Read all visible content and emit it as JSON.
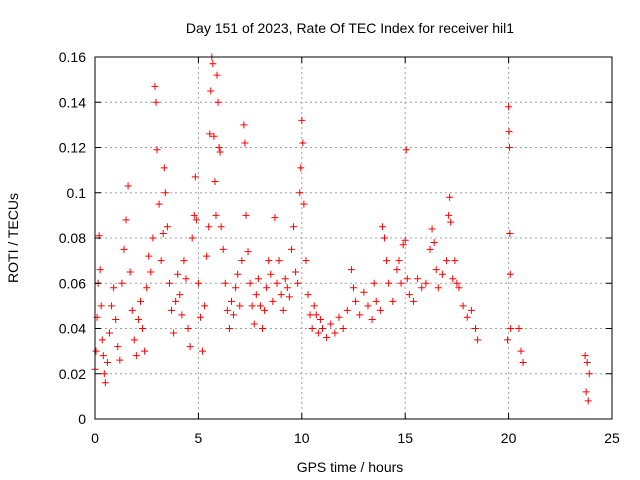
{
  "chart_data": {
    "type": "scatter",
    "title": "Day 151 of 2023, Rate Of TEC Index for receiver hil1",
    "xlabel": "GPS time / hours",
    "ylabel": "ROTI / TECUs",
    "xlim": [
      0,
      25
    ],
    "ylim": [
      0,
      0.16
    ],
    "xticks": [
      0,
      5,
      10,
      15,
      20,
      25
    ],
    "yticks": [
      0,
      0.02,
      0.04,
      0.06,
      0.08,
      0.1,
      0.12,
      0.14,
      0.16
    ],
    "xtick_labels": [
      "0",
      "5",
      "10",
      "15",
      "20",
      "25"
    ],
    "ytick_labels": [
      "0",
      "0.02",
      "0.04",
      "0.06",
      "0.08",
      "0.1",
      "0.12",
      "0.14",
      "0.16"
    ],
    "grid": true,
    "marker": "+",
    "color": "#ff0000",
    "series": [
      {
        "name": "ROTI",
        "points": [
          [
            0.0,
            0.022
          ],
          [
            0.05,
            0.03
          ],
          [
            0.1,
            0.045
          ],
          [
            0.15,
            0.06
          ],
          [
            0.2,
            0.081
          ],
          [
            0.25,
            0.066
          ],
          [
            0.3,
            0.05
          ],
          [
            0.35,
            0.035
          ],
          [
            0.4,
            0.028
          ],
          [
            0.45,
            0.02
          ],
          [
            0.5,
            0.016
          ],
          [
            0.6,
            0.025
          ],
          [
            0.7,
            0.038
          ],
          [
            0.8,
            0.05
          ],
          [
            0.9,
            0.058
          ],
          [
            1.0,
            0.044
          ],
          [
            1.1,
            0.032
          ],
          [
            1.2,
            0.026
          ],
          [
            1.3,
            0.06
          ],
          [
            1.4,
            0.075
          ],
          [
            1.5,
            0.088
          ],
          [
            1.6,
            0.103
          ],
          [
            1.7,
            0.065
          ],
          [
            1.8,
            0.048
          ],
          [
            1.9,
            0.035
          ],
          [
            2.0,
            0.028
          ],
          [
            2.1,
            0.044
          ],
          [
            2.2,
            0.052
          ],
          [
            2.3,
            0.04
          ],
          [
            2.4,
            0.03
          ],
          [
            2.5,
            0.058
          ],
          [
            2.6,
            0.072
          ],
          [
            2.7,
            0.065
          ],
          [
            2.8,
            0.08
          ],
          [
            2.9,
            0.147
          ],
          [
            2.95,
            0.14
          ],
          [
            3.0,
            0.119
          ],
          [
            3.1,
            0.095
          ],
          [
            3.2,
            0.07
          ],
          [
            3.3,
            0.082
          ],
          [
            3.35,
            0.111
          ],
          [
            3.4,
            0.1
          ],
          [
            3.5,
            0.085
          ],
          [
            3.6,
            0.06
          ],
          [
            3.7,
            0.048
          ],
          [
            3.8,
            0.038
          ],
          [
            3.9,
            0.052
          ],
          [
            4.0,
            0.064
          ],
          [
            4.1,
            0.055
          ],
          [
            4.2,
            0.046
          ],
          [
            4.3,
            0.07
          ],
          [
            4.4,
            0.062
          ],
          [
            4.5,
            0.04
          ],
          [
            4.6,
            0.032
          ],
          [
            4.7,
            0.08
          ],
          [
            4.8,
            0.09
          ],
          [
            4.85,
            0.107
          ],
          [
            4.9,
            0.088
          ],
          [
            5.0,
            0.06
          ],
          [
            5.1,
            0.045
          ],
          [
            5.2,
            0.03
          ],
          [
            5.3,
            0.05
          ],
          [
            5.4,
            0.072
          ],
          [
            5.5,
            0.085
          ],
          [
            5.55,
            0.126
          ],
          [
            5.6,
            0.145
          ],
          [
            5.65,
            0.16
          ],
          [
            5.7,
            0.157
          ],
          [
            5.75,
            0.125
          ],
          [
            5.8,
            0.105
          ],
          [
            5.85,
            0.09
          ],
          [
            5.9,
            0.152
          ],
          [
            5.95,
            0.14
          ],
          [
            6.0,
            0.12
          ],
          [
            6.05,
            0.118
          ],
          [
            6.1,
            0.085
          ],
          [
            6.2,
            0.075
          ],
          [
            6.3,
            0.06
          ],
          [
            6.4,
            0.048
          ],
          [
            6.5,
            0.04
          ],
          [
            6.6,
            0.052
          ],
          [
            6.7,
            0.046
          ],
          [
            6.8,
            0.058
          ],
          [
            6.9,
            0.064
          ],
          [
            7.0,
            0.05
          ],
          [
            7.1,
            0.07
          ],
          [
            7.2,
            0.13
          ],
          [
            7.25,
            0.122
          ],
          [
            7.3,
            0.09
          ],
          [
            7.4,
            0.074
          ],
          [
            7.5,
            0.06
          ],
          [
            7.6,
            0.05
          ],
          [
            7.7,
            0.042
          ],
          [
            7.8,
            0.055
          ],
          [
            7.9,
            0.062
          ],
          [
            8.0,
            0.05
          ],
          [
            8.1,
            0.04
          ],
          [
            8.2,
            0.048
          ],
          [
            8.3,
            0.058
          ],
          [
            8.4,
            0.07
          ],
          [
            8.5,
            0.064
          ],
          [
            8.6,
            0.052
          ],
          [
            8.7,
            0.089
          ],
          [
            8.8,
            0.06
          ],
          [
            8.9,
            0.07
          ],
          [
            9.0,
            0.055
          ],
          [
            9.1,
            0.048
          ],
          [
            9.2,
            0.062
          ],
          [
            9.3,
            0.058
          ],
          [
            9.4,
            0.054
          ],
          [
            9.5,
            0.075
          ],
          [
            9.6,
            0.085
          ],
          [
            9.7,
            0.065
          ],
          [
            9.8,
            0.06
          ],
          [
            9.9,
            0.1
          ],
          [
            9.95,
            0.111
          ],
          [
            10.0,
            0.132
          ],
          [
            10.05,
            0.122
          ],
          [
            10.1,
            0.095
          ],
          [
            10.2,
            0.07
          ],
          [
            10.3,
            0.055
          ],
          [
            10.4,
            0.046
          ],
          [
            10.5,
            0.04
          ],
          [
            10.6,
            0.05
          ],
          [
            10.7,
            0.046
          ],
          [
            10.8,
            0.038
          ],
          [
            10.9,
            0.044
          ],
          [
            11.0,
            0.04
          ],
          [
            11.2,
            0.036
          ],
          [
            11.4,
            0.042
          ],
          [
            11.6,
            0.038
          ],
          [
            11.8,
            0.045
          ],
          [
            12.0,
            0.04
          ],
          [
            12.2,
            0.048
          ],
          [
            12.4,
            0.066
          ],
          [
            12.5,
            0.058
          ],
          [
            12.6,
            0.052
          ],
          [
            12.8,
            0.046
          ],
          [
            13.0,
            0.056
          ],
          [
            13.2,
            0.05
          ],
          [
            13.4,
            0.044
          ],
          [
            13.5,
            0.06
          ],
          [
            13.6,
            0.052
          ],
          [
            13.8,
            0.048
          ],
          [
            13.9,
            0.085
          ],
          [
            14.0,
            0.08
          ],
          [
            14.1,
            0.07
          ],
          [
            14.2,
            0.06
          ],
          [
            14.4,
            0.052
          ],
          [
            14.6,
            0.066
          ],
          [
            14.7,
            0.07
          ],
          [
            14.8,
            0.06
          ],
          [
            14.9,
            0.077
          ],
          [
            15.0,
            0.079
          ],
          [
            15.05,
            0.119
          ],
          [
            15.1,
            0.062
          ],
          [
            15.2,
            0.055
          ],
          [
            15.4,
            0.052
          ],
          [
            15.6,
            0.062
          ],
          [
            15.8,
            0.058
          ],
          [
            16.0,
            0.06
          ],
          [
            16.2,
            0.075
          ],
          [
            16.3,
            0.084
          ],
          [
            16.4,
            0.078
          ],
          [
            16.5,
            0.066
          ],
          [
            16.6,
            0.058
          ],
          [
            16.8,
            0.064
          ],
          [
            17.0,
            0.07
          ],
          [
            17.1,
            0.09
          ],
          [
            17.15,
            0.098
          ],
          [
            17.2,
            0.087
          ],
          [
            17.3,
            0.062
          ],
          [
            17.4,
            0.07
          ],
          [
            17.5,
            0.06
          ],
          [
            17.6,
            0.058
          ],
          [
            17.8,
            0.05
          ],
          [
            18.0,
            0.045
          ],
          [
            18.2,
            0.048
          ],
          [
            18.4,
            0.04
          ],
          [
            18.5,
            0.035
          ],
          [
            19.95,
            0.035
          ],
          [
            20.0,
            0.138
          ],
          [
            20.02,
            0.127
          ],
          [
            20.04,
            0.12
          ],
          [
            20.06,
            0.082
          ],
          [
            20.08,
            0.064
          ],
          [
            20.1,
            0.04
          ],
          [
            20.5,
            0.04
          ],
          [
            20.6,
            0.03
          ],
          [
            20.7,
            0.025
          ],
          [
            23.7,
            0.028
          ],
          [
            23.8,
            0.025
          ],
          [
            23.9,
            0.02
          ],
          [
            23.75,
            0.012
          ],
          [
            23.85,
            0.008
          ]
        ]
      }
    ]
  }
}
